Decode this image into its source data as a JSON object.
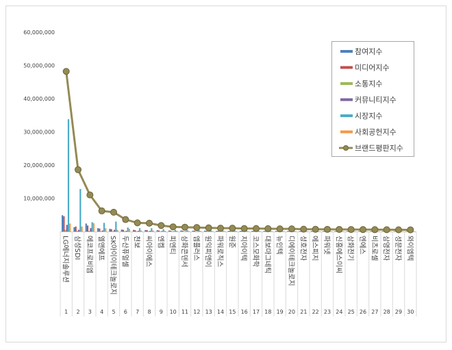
{
  "chart_data": {
    "type": "bar-line",
    "categories": [
      "LG에너지솔루션",
      "삼성SDI",
      "에코프로비엠",
      "엘앤에프",
      "SK아이이테크놀로지",
      "두산퓨얼셀",
      "천보",
      "씨아이에스",
      "엔켐",
      "피엔티",
      "삼화콘덴서",
      "엠플러스",
      "원익피앤이",
      "파워로직스",
      "원준",
      "지아이텍",
      "코스모화학",
      "대보마그네틱",
      "뉴인텍",
      "디에이테크놀로지",
      "성호전자",
      "에스피지",
      "파워넷",
      "신흥에스이씨",
      "삼화전기",
      "엔에스",
      "비츠로셀",
      "삼영전자",
      "성문전자",
      "와이엠텍"
    ],
    "ranks": [
      1,
      2,
      3,
      4,
      5,
      6,
      7,
      8,
      9,
      10,
      11,
      12,
      13,
      14,
      15,
      16,
      17,
      18,
      19,
      20,
      21,
      22,
      23,
      24,
      25,
      26,
      27,
      28,
      29,
      30
    ],
    "ylim": [
      0,
      60000000
    ],
    "yticks": [
      {
        "value": 10000000,
        "label": "10,000,000"
      },
      {
        "value": 20000000,
        "label": "20,000,000"
      },
      {
        "value": 30000000,
        "label": "30,000,000"
      },
      {
        "value": 40000000,
        "label": "40,000,000"
      },
      {
        "value": 50000000,
        "label": "50,000,000"
      },
      {
        "value": 60000000,
        "label": "60,000,000"
      }
    ],
    "series": [
      {
        "name": "참여지수",
        "color": "#4f81bd",
        "values": [
          4900000,
          1300000,
          2400000,
          1000000,
          800000,
          600000,
          500000,
          450000,
          400000,
          300000,
          300000,
          250000,
          250000,
          200000,
          200000,
          200000,
          200000,
          180000,
          170000,
          170000,
          150000,
          150000,
          140000,
          140000,
          130000,
          130000,
          120000,
          120000,
          110000,
          110000
        ]
      },
      {
        "name": "미디어지수",
        "color": "#c0504d",
        "values": [
          4600000,
          1500000,
          1800000,
          900000,
          700000,
          500000,
          400000,
          400000,
          300000,
          250000,
          250000,
          250000,
          200000,
          200000,
          200000,
          180000,
          180000,
          170000,
          160000,
          160000,
          150000,
          140000,
          140000,
          130000,
          120000,
          120000,
          110000,
          110000,
          100000,
          100000
        ]
      },
      {
        "name": "소통지수",
        "color": "#9bbb59",
        "values": [
          500000,
          200000,
          200000,
          100000,
          100000,
          100000,
          80000,
          80000,
          60000,
          50000,
          50000,
          50000,
          40000,
          40000,
          40000,
          40000,
          40000,
          30000,
          30000,
          30000,
          30000,
          30000,
          30000,
          30000,
          20000,
          20000,
          20000,
          20000,
          20000,
          20000
        ]
      },
      {
        "name": "커뮤니티지수",
        "color": "#8064a2",
        "values": [
          2000000,
          500000,
          1000000,
          300000,
          500000,
          200000,
          200000,
          200000,
          150000,
          100000,
          100000,
          100000,
          100000,
          80000,
          80000,
          80000,
          80000,
          70000,
          70000,
          70000,
          60000,
          60000,
          60000,
          60000,
          50000,
          50000,
          50000,
          50000,
          40000,
          40000
        ]
      },
      {
        "name": "시장지수",
        "color": "#4bacc6",
        "values": [
          33800000,
          12800000,
          2800000,
          2600000,
          3000000,
          1200000,
          1000000,
          1000000,
          700000,
          500000,
          450000,
          400000,
          400000,
          350000,
          350000,
          300000,
          300000,
          300000,
          280000,
          280000,
          250000,
          250000,
          230000,
          220000,
          220000,
          200000,
          200000,
          180000,
          180000,
          150000
        ]
      },
      {
        "name": "사회공헌지수",
        "color": "#f79646",
        "values": [
          2400000,
          1500000,
          2500000,
          1000000,
          500000,
          800000,
          300000,
          300000,
          200000,
          200000,
          150000,
          150000,
          110000,
          130000,
          130000,
          100000,
          100000,
          100000,
          90000,
          90000,
          80000,
          70000,
          70000,
          70000,
          60000,
          60000,
          60000,
          50000,
          50000,
          50000
        ]
      },
      {
        "name": "브랜드평판지수",
        "color": "#948a54",
        "type": "line",
        "values": [
          48200000,
          18600000,
          11000000,
          6200000,
          5800000,
          3600000,
          2600000,
          2500000,
          1800000,
          1400000,
          1300000,
          1200000,
          1100000,
          1000000,
          1000000,
          900000,
          900000,
          850000,
          800000,
          800000,
          700000,
          680000,
          650000,
          630000,
          600000,
          580000,
          560000,
          540000,
          520000,
          500000
        ]
      }
    ]
  }
}
